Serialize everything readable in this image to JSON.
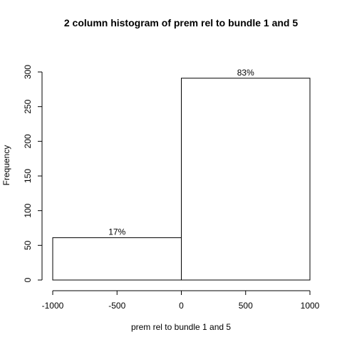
{
  "chart_data": {
    "type": "bar",
    "title": "2 column histogram of prem rel to bundle 1 and 5",
    "xlabel": "prem rel to bundle 1 and 5",
    "ylabel": "Frequency",
    "bins": [
      {
        "start": -1000,
        "end": 0,
        "count": 61,
        "label": "17%"
      },
      {
        "start": 0,
        "end": 1000,
        "count": 291,
        "label": "83%"
      }
    ],
    "xlim": [
      -1000,
      1000
    ],
    "ylim": [
      0,
      300
    ],
    "xticks": [
      -1000,
      -500,
      0,
      500,
      1000
    ],
    "xtick_labels": [
      "-1000",
      "-500",
      "0",
      "500",
      "1000"
    ],
    "yticks": [
      0,
      50,
      100,
      150,
      200,
      250,
      300
    ],
    "ytick_labels": [
      "0",
      "50",
      "100",
      "150",
      "200",
      "250",
      "300"
    ],
    "grid": false,
    "colors": {
      "bar_fill": "#ffffff",
      "bar_stroke": "#000000",
      "text": "#000000"
    }
  }
}
